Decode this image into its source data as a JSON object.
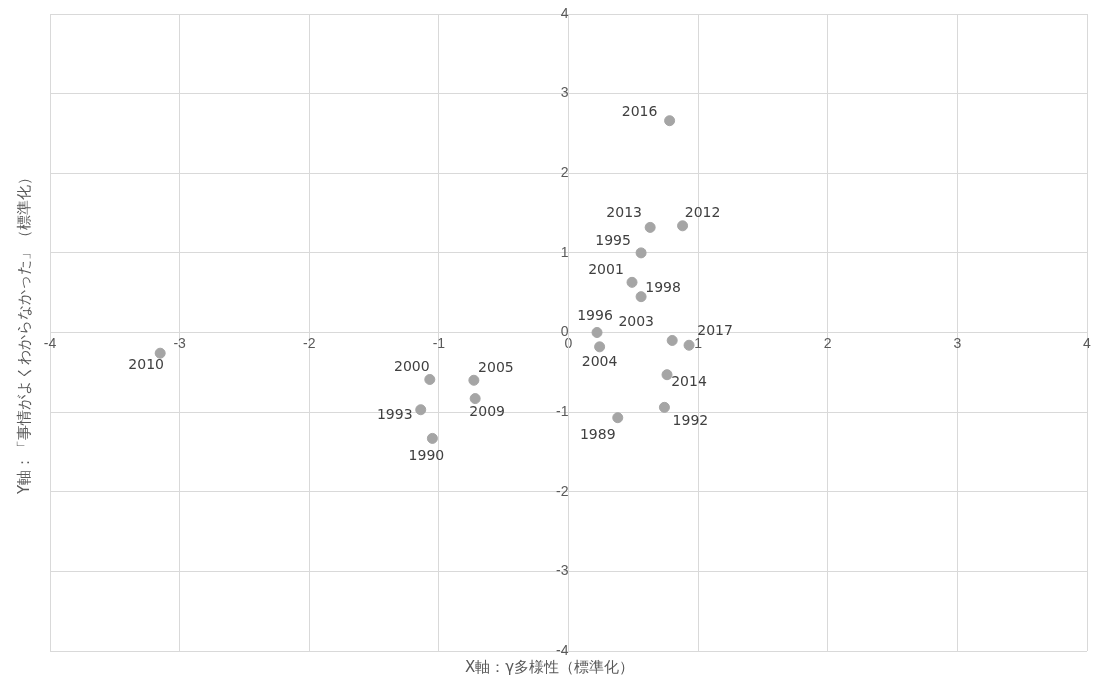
{
  "chart_data": {
    "type": "scatter",
    "xlabel": "X軸：γ多様性（標準化）",
    "ylabel": "Y軸：「事情がよくわからなかった」（標準化）",
    "x": [
      0.78,
      0.63,
      0.88,
      0.56,
      0.49,
      0.56,
      0.22,
      0.24,
      0.8,
      0.93,
      0.76,
      0.74,
      0.38,
      -1.07,
      -0.73,
      -0.72,
      -1.14,
      -1.05,
      -3.15
    ],
    "series": [
      {
        "color": "#a5a5a5",
        "values": [
          2.66,
          1.32,
          1.34,
          1.0,
          0.63,
          0.45,
          0.0,
          -0.18,
          -0.1,
          -0.16,
          -0.53,
          -0.94,
          -1.07,
          -0.59,
          -0.6,
          -0.83,
          -0.97,
          -1.33,
          -0.26
        ]
      }
    ],
    "annotations": [
      {
        "text": "2016",
        "x": 0.78,
        "y": 2.66
      },
      {
        "text": "2013",
        "x": 0.63,
        "y": 1.32
      },
      {
        "text": "2012",
        "x": 0.88,
        "y": 1.34
      },
      {
        "text": "1995",
        "x": 0.56,
        "y": 1.0
      },
      {
        "text": "2001",
        "x": 0.49,
        "y": 0.63
      },
      {
        "text": "1998",
        "x": 0.56,
        "y": 0.45
      },
      {
        "text": "1996",
        "x": 0.22,
        "y": 0.0
      },
      {
        "text": "2004",
        "x": 0.24,
        "y": -0.18
      },
      {
        "text": "2003",
        "x": 0.8,
        "y": -0.1
      },
      {
        "text": "2017",
        "x": 0.93,
        "y": -0.16
      },
      {
        "text": "2014",
        "x": 0.76,
        "y": -0.53
      },
      {
        "text": "1992",
        "x": 0.74,
        "y": -0.94
      },
      {
        "text": "1989",
        "x": 0.38,
        "y": -1.07
      },
      {
        "text": "2000",
        "x": -1.07,
        "y": -0.59
      },
      {
        "text": "2005",
        "x": -0.73,
        "y": -0.6
      },
      {
        "text": "2009",
        "x": -0.72,
        "y": -0.83
      },
      {
        "text": "1993",
        "x": -1.14,
        "y": -0.97
      },
      {
        "text": "1990",
        "x": -1.05,
        "y": -1.33
      },
      {
        "text": "2010",
        "x": -3.15,
        "y": -0.26
      }
    ],
    "xlim": [
      -4,
      4
    ],
    "xticks": [
      -4,
      -3,
      -2,
      -1,
      0,
      1,
      2,
      3,
      4
    ],
    "ylim": [
      -4,
      4
    ],
    "yticks": [
      -4,
      -3,
      -2,
      -1,
      0,
      1,
      2,
      3,
      4
    ],
    "grid": true,
    "legend": false,
    "marker": "circle"
  }
}
